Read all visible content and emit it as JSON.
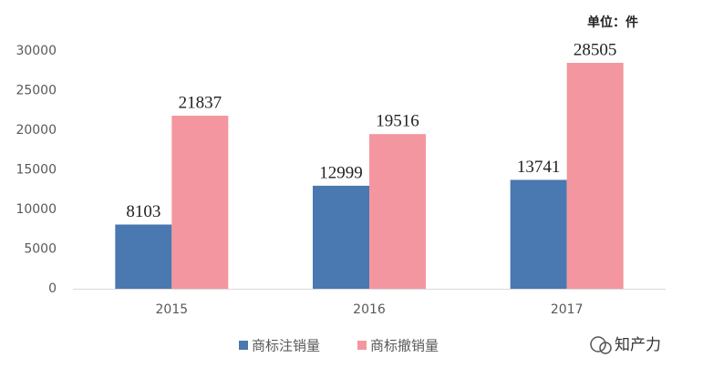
{
  "chart_data": {
    "type": "bar",
    "unit_label": "单位：件",
    "categories": [
      "2015",
      "2016",
      "2017"
    ],
    "series": [
      {
        "name": "商标注销量",
        "color": "#4a78b0",
        "values": [
          8103,
          12999,
          13741
        ]
      },
      {
        "name": "商标撤销量",
        "color": "#f4969f",
        "values": [
          21837,
          19516,
          28505
        ]
      }
    ],
    "ylim": [
      0,
      30000
    ],
    "yticks": [
      0,
      5000,
      10000,
      15000,
      20000,
      25000,
      30000
    ],
    "grid": false,
    "watermark": "知产力"
  }
}
